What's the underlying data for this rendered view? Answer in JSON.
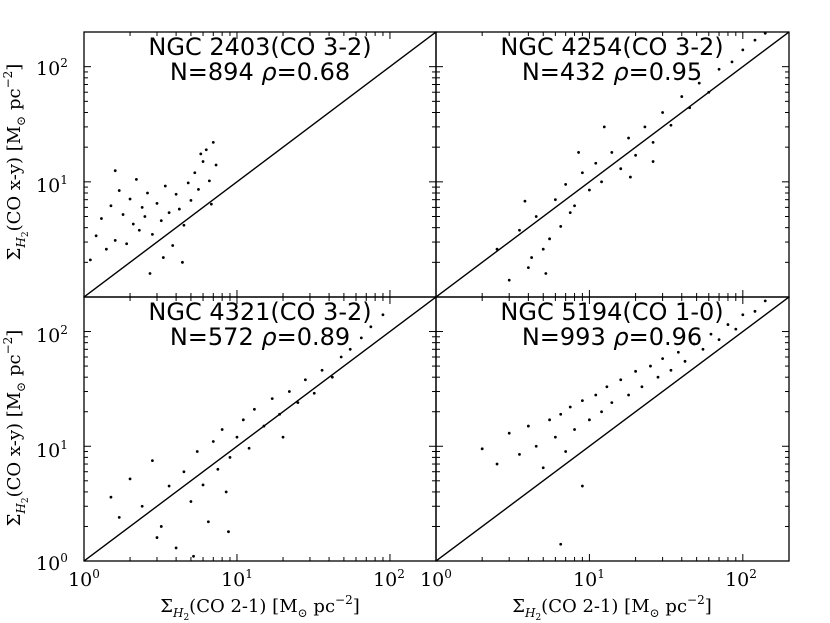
{
  "figure": {
    "xlabel": "Σ_H₂(CO 2-1) [M_⊙ pc⁻²]",
    "ylabel": "Σ_H₂(CO x-y) [M_⊙ pc⁻²]",
    "xlabel_parts": {
      "symbol": "Σ",
      "sub": "H",
      "subsub": "2",
      "rest": "(CO 2-1) [M",
      "sun": "⊙",
      "unit": " pc",
      "exp": "−2",
      "close": "]"
    },
    "ylabel_parts": {
      "symbol": "Σ",
      "sub": "H",
      "subsub": "2",
      "rest": "(CO x-y) [M",
      "sun": "⊙",
      "unit": " pc",
      "exp": "−2",
      "close": "]"
    },
    "tick_labels": {
      "t0": "10",
      "e0": "0",
      "t1": "10",
      "e1": "1",
      "t2": "10",
      "e2": "2"
    }
  },
  "chart_data": [
    {
      "type": "scatter",
      "title": "NGC 2403(CO 3-2)",
      "stats": "N=894 ρ=0.68",
      "n": "N=894",
      "rho_label": "ρ",
      "rho_value": "=0.68",
      "xlim": [
        1,
        200
      ],
      "ylim": [
        1,
        200
      ],
      "xscale": "log",
      "yscale": "log",
      "reference_line": "y = x",
      "points": [
        [
          1.1,
          2.1
        ],
        [
          1.2,
          3.4
        ],
        [
          1.3,
          4.8
        ],
        [
          1.4,
          2.6
        ],
        [
          1.5,
          6.2
        ],
        [
          1.6,
          3.1
        ],
        [
          1.7,
          8.4
        ],
        [
          1.8,
          5.2
        ],
        [
          1.9,
          2.9
        ],
        [
          2.0,
          7.1
        ],
        [
          2.1,
          4.3
        ],
        [
          2.2,
          10.5
        ],
        [
          2.3,
          3.8
        ],
        [
          2.4,
          6.0
        ],
        [
          2.5,
          5.0
        ],
        [
          2.6,
          8.0
        ],
        [
          2.8,
          3.5
        ],
        [
          3.0,
          6.5
        ],
        [
          3.2,
          4.6
        ],
        [
          3.4,
          9.2
        ],
        [
          3.6,
          5.4
        ],
        [
          3.8,
          2.8
        ],
        [
          4.0,
          7.8
        ],
        [
          4.2,
          5.8
        ],
        [
          4.5,
          4.2
        ],
        [
          4.8,
          9.8
        ],
        [
          5.0,
          6.9
        ],
        [
          5.3,
          12.0
        ],
        [
          5.6,
          8.6
        ],
        [
          6.0,
          15.0
        ],
        [
          6.3,
          19.0
        ],
        [
          6.6,
          10.2
        ],
        [
          7.0,
          22.0
        ],
        [
          7.3,
          14.0
        ],
        [
          6.8,
          6.4
        ],
        [
          5.8,
          17.5
        ],
        [
          2.7,
          1.6
        ],
        [
          3.3,
          2.2
        ],
        [
          4.4,
          2.0
        ],
        [
          1.6,
          12.5
        ]
      ]
    },
    {
      "type": "scatter",
      "title": "NGC 4254(CO 3-2)",
      "stats": "N=432 ρ=0.95",
      "n": "N=432",
      "rho_label": "ρ",
      "rho_value": "=0.95",
      "xlim": [
        1,
        200
      ],
      "ylim": [
        1,
        200
      ],
      "xscale": "log",
      "yscale": "log",
      "reference_line": "y = x",
      "points": [
        [
          2.5,
          2.6
        ],
        [
          3.0,
          1.4
        ],
        [
          3.5,
          3.8
        ],
        [
          4.0,
          1.8
        ],
        [
          4.5,
          5.0
        ],
        [
          5.0,
          2.6
        ],
        [
          5.5,
          3.2
        ],
        [
          6.0,
          7.0
        ],
        [
          6.5,
          4.1
        ],
        [
          7.0,
          9.5
        ],
        [
          8.0,
          6.2
        ],
        [
          9.0,
          12.0
        ],
        [
          10.0,
          8.5
        ],
        [
          11.0,
          14.5
        ],
        [
          12.0,
          10.0
        ],
        [
          14.0,
          18.0
        ],
        [
          16.0,
          13.0
        ],
        [
          18.0,
          24.0
        ],
        [
          20.0,
          17.0
        ],
        [
          23.0,
          30.0
        ],
        [
          26.0,
          22.0
        ],
        [
          30.0,
          40.0
        ],
        [
          34.0,
          31.0
        ],
        [
          40.0,
          55.0
        ],
        [
          45.0,
          44.0
        ],
        [
          52.0,
          72.0
        ],
        [
          60.0,
          60.0
        ],
        [
          70.0,
          95.0
        ],
        [
          85.0,
          110.0
        ],
        [
          100.0,
          140.0
        ],
        [
          120.0,
          170.0
        ],
        [
          140.0,
          195.0
        ],
        [
          5.2,
          1.6
        ],
        [
          4.2,
          2.2
        ],
        [
          8.5,
          18.0
        ],
        [
          12.5,
          30.0
        ],
        [
          18.5,
          11.0
        ],
        [
          26.0,
          15.0
        ],
        [
          7.5,
          5.4
        ],
        [
          3.8,
          6.8
        ]
      ]
    },
    {
      "type": "scatter",
      "title": "NGC 4321(CO 3-2)",
      "stats": "N=572 ρ=0.89",
      "n": "N=572",
      "rho_label": "ρ",
      "rho_value": "=0.89",
      "xlim": [
        1,
        200
      ],
      "ylim": [
        1,
        200
      ],
      "xscale": "log",
      "yscale": "log",
      "reference_line": "y = x",
      "points": [
        [
          1.5,
          3.6
        ],
        [
          1.7,
          2.4
        ],
        [
          2.0,
          5.2
        ],
        [
          2.4,
          3.0
        ],
        [
          2.8,
          7.5
        ],
        [
          3.2,
          2.0
        ],
        [
          3.6,
          4.5
        ],
        [
          4.0,
          1.3
        ],
        [
          4.5,
          6.0
        ],
        [
          5.0,
          3.3
        ],
        [
          5.5,
          9.0
        ],
        [
          6.0,
          4.6
        ],
        [
          6.5,
          2.2
        ],
        [
          7.0,
          11.0
        ],
        [
          7.5,
          6.3
        ],
        [
          8.0,
          14.0
        ],
        [
          8.5,
          4.0
        ],
        [
          9.0,
          8.0
        ],
        [
          10.0,
          12.0
        ],
        [
          11.0,
          17.0
        ],
        [
          12.0,
          9.6
        ],
        [
          13.0,
          21.0
        ],
        [
          15.0,
          15.0
        ],
        [
          17.0,
          26.0
        ],
        [
          19.0,
          19.0
        ],
        [
          22.0,
          30.0
        ],
        [
          25.0,
          24.0
        ],
        [
          28.0,
          38.0
        ],
        [
          32.0,
          29.0
        ],
        [
          36.0,
          46.0
        ],
        [
          42.0,
          40.0
        ],
        [
          48.0,
          60.0
        ],
        [
          55.0,
          70.0
        ],
        [
          65.0,
          88.0
        ],
        [
          75.0,
          110.0
        ],
        [
          90.0,
          140.0
        ],
        [
          5.2,
          1.1
        ],
        [
          3.0,
          1.6
        ],
        [
          8.8,
          1.8
        ],
        [
          20.0,
          12.0
        ]
      ]
    },
    {
      "type": "scatter",
      "title": "NGC 5194(CO 1-0)",
      "stats": "N=993 ρ=0.96",
      "n": "N=993",
      "rho_label": "ρ",
      "rho_value": "=0.96",
      "xlim": [
        1,
        200
      ],
      "ylim": [
        1,
        200
      ],
      "xscale": "log",
      "yscale": "log",
      "reference_line": "y = x",
      "points": [
        [
          2.0,
          9.5
        ],
        [
          2.5,
          7.0
        ],
        [
          3.0,
          13.0
        ],
        [
          3.5,
          8.5
        ],
        [
          4.0,
          15.0
        ],
        [
          4.5,
          10.0
        ],
        [
          5.0,
          6.5
        ],
        [
          5.5,
          17.0
        ],
        [
          6.0,
          12.0
        ],
        [
          6.5,
          19.0
        ],
        [
          7.0,
          9.0
        ],
        [
          7.5,
          22.0
        ],
        [
          8.0,
          14.0
        ],
        [
          9.0,
          25.0
        ],
        [
          10.0,
          17.0
        ],
        [
          11.0,
          28.0
        ],
        [
          12.0,
          20.0
        ],
        [
          13.0,
          33.0
        ],
        [
          14.0,
          24.0
        ],
        [
          16.0,
          38.0
        ],
        [
          18.0,
          28.0
        ],
        [
          20.0,
          45.0
        ],
        [
          22.0,
          33.0
        ],
        [
          25.0,
          50.0
        ],
        [
          28.0,
          40.0
        ],
        [
          30.0,
          58.0
        ],
        [
          34.0,
          46.0
        ],
        [
          38.0,
          66.0
        ],
        [
          42.0,
          55.0
        ],
        [
          48.0,
          78.0
        ],
        [
          55.0,
          70.0
        ],
        [
          62.0,
          95.0
        ],
        [
          70.0,
          85.0
        ],
        [
          80.0,
          115.0
        ],
        [
          90.0,
          105.0
        ],
        [
          100.0,
          140.0
        ],
        [
          120.0,
          150.0
        ],
        [
          140.0,
          185.0
        ],
        [
          6.5,
          1.4
        ],
        [
          9.0,
          4.5
        ]
      ]
    }
  ]
}
